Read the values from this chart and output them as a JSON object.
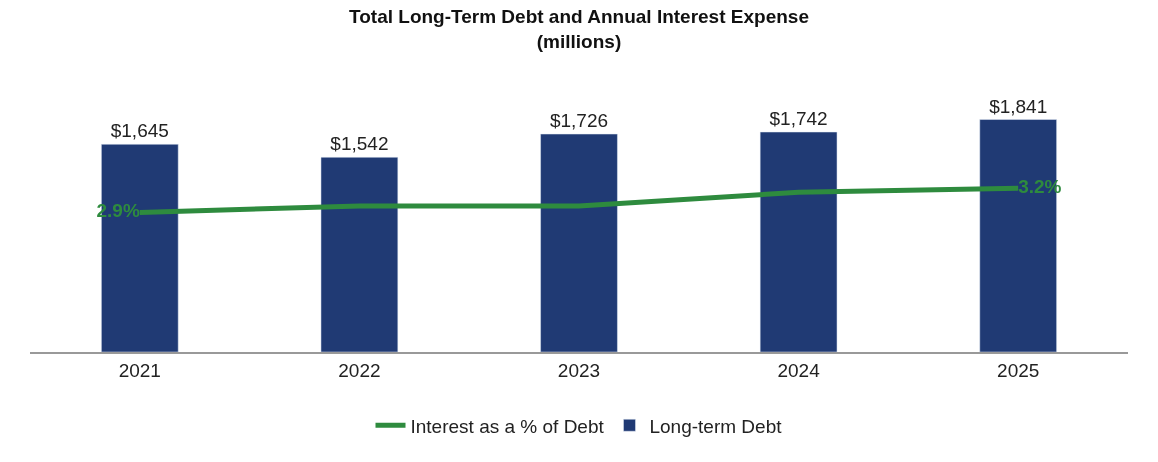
{
  "chart_data": {
    "type": "bar",
    "title": "Total Long-Term Debt and Annual Interest Expense",
    "subtitle": "(millions)",
    "categories": [
      "2021",
      "2022",
      "2023",
      "2024",
      "2025"
    ],
    "tick_labels": "x",
    "legend": "bottom",
    "series": [
      {
        "name": "Interest as a % of Debt",
        "type": "line",
        "axis": "y2",
        "color": "#2e8b3e",
        "marker": "none",
        "values": [
          2.9,
          2.98,
          2.98,
          3.15,
          3.2
        ],
        "value_labels": [
          "2.9%",
          null,
          null,
          null,
          "3.2%"
        ]
      },
      {
        "name": "Long-term Debt",
        "color": "#203a74",
        "values": [
          1645,
          1542,
          1726,
          1742,
          1841
        ],
        "value_labels": [
          "$1,645",
          "$1,542",
          "$1,726",
          "$1,742",
          "$1,841"
        ]
      }
    ]
  }
}
